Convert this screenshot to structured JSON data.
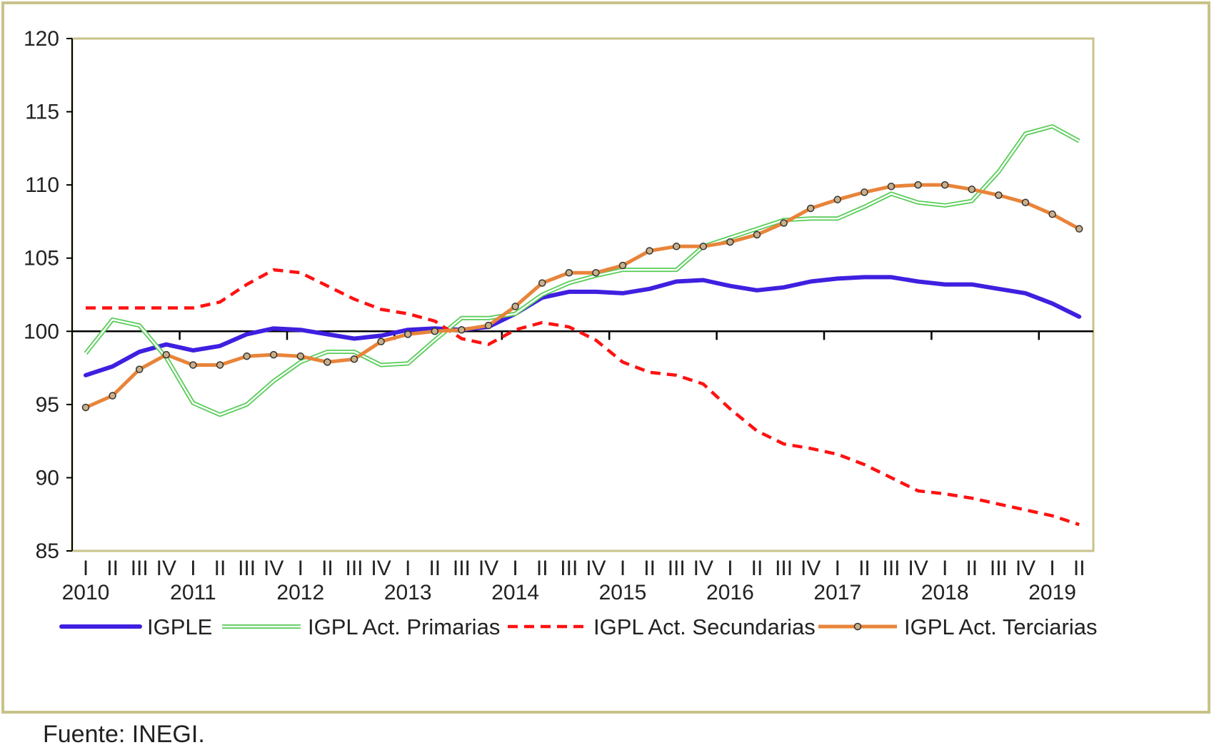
{
  "chart_data": {
    "type": "line",
    "title": "",
    "xlabel": "",
    "ylabel": "",
    "ylim": [
      85,
      120
    ],
    "yticks": [
      85,
      90,
      95,
      100,
      105,
      110,
      115,
      120
    ],
    "reference_line": 100,
    "quarters": [
      "I",
      "II",
      "III",
      "IV",
      "I",
      "II",
      "III",
      "IV",
      "I",
      "II",
      "III",
      "IV",
      "I",
      "II",
      "III",
      "IV",
      "I",
      "II",
      "III",
      "IV",
      "I",
      "II",
      "III",
      "IV",
      "I",
      "II",
      "III",
      "IV",
      "I",
      "II",
      "III",
      "IV",
      "I",
      "II",
      "III",
      "IV",
      "I",
      "II"
    ],
    "years": [
      "2010",
      "2011",
      "2012",
      "2013",
      "2014",
      "2015",
      "2016",
      "2017",
      "2018",
      "2019"
    ],
    "series": [
      {
        "name": "IGPLE",
        "color": "#3f1fe0",
        "style": "thick",
        "values": [
          97.0,
          97.6,
          98.6,
          99.1,
          98.7,
          99.0,
          99.8,
          100.2,
          100.1,
          99.8,
          99.5,
          99.7,
          100.1,
          100.2,
          100.1,
          100.3,
          101.2,
          102.3,
          102.7,
          102.7,
          102.6,
          102.9,
          103.4,
          103.5,
          103.1,
          102.8,
          103.0,
          103.4,
          103.6,
          103.7,
          103.7,
          103.4,
          103.2,
          103.2,
          102.9,
          102.6,
          101.9,
          101.0
        ]
      },
      {
        "name": "IGPL Act. Primarias",
        "color": "#55cc55",
        "style": "double",
        "values": [
          98.5,
          100.8,
          100.4,
          98.2,
          95.1,
          94.3,
          95.0,
          96.6,
          97.9,
          98.6,
          98.6,
          97.7,
          97.8,
          99.4,
          100.9,
          100.9,
          101.2,
          102.5,
          103.3,
          103.8,
          104.2,
          104.2,
          104.2,
          105.8,
          106.4,
          107.0,
          107.6,
          107.7,
          107.7,
          108.5,
          109.4,
          108.8,
          108.6,
          108.9,
          110.9,
          113.5,
          114.0,
          113.0
        ]
      },
      {
        "name": "IGPL Act. Secundarias",
        "color": "#ff1111",
        "style": "dashed",
        "values": [
          101.6,
          101.6,
          101.6,
          101.6,
          101.6,
          102.0,
          103.2,
          104.2,
          104.0,
          103.1,
          102.2,
          101.5,
          101.2,
          100.7,
          99.5,
          99.1,
          100.1,
          100.6,
          100.3,
          99.4,
          97.9,
          97.2,
          97.0,
          96.4,
          94.7,
          93.2,
          92.3,
          92.0,
          91.6,
          90.9,
          90.0,
          89.1,
          88.9,
          88.6,
          88.2,
          87.8,
          87.4,
          86.8
        ]
      },
      {
        "name": "IGPL Act. Terciarias",
        "color": "#e8843a",
        "style": "dotted-markers",
        "values": [
          94.8,
          95.6,
          97.4,
          98.4,
          97.7,
          97.7,
          98.3,
          98.4,
          98.3,
          97.9,
          98.1,
          99.3,
          99.8,
          100.0,
          100.1,
          100.4,
          101.7,
          103.3,
          104.0,
          104.0,
          104.5,
          105.5,
          105.8,
          105.8,
          106.1,
          106.6,
          107.4,
          108.4,
          109.0,
          109.5,
          109.9,
          110.0,
          110.0,
          109.7,
          109.3,
          108.8,
          108.0,
          107.0
        ]
      }
    ]
  },
  "source": "Fuente: INEGI."
}
